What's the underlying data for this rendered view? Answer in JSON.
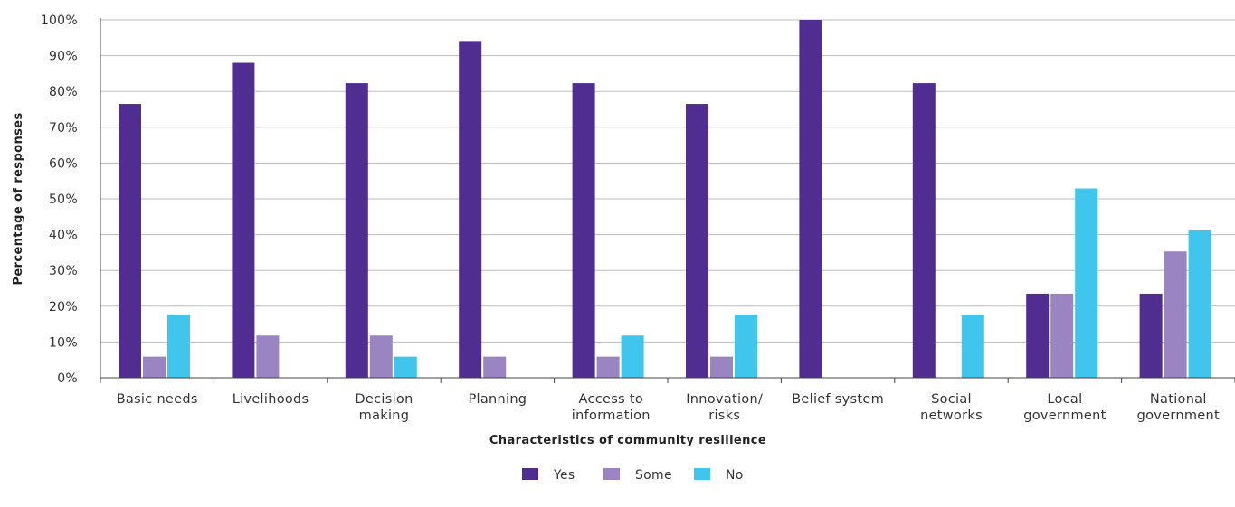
{
  "chart_data": {
    "type": "bar",
    "categories": [
      [
        "Basic needs"
      ],
      [
        "Livelihoods"
      ],
      [
        "Decision",
        "making"
      ],
      [
        "Planning"
      ],
      [
        "Access to",
        "information"
      ],
      [
        "Innovation/",
        "risks"
      ],
      [
        "Belief system"
      ],
      [
        "Social",
        "networks"
      ],
      [
        "Local",
        "government"
      ],
      [
        "National",
        "government"
      ]
    ],
    "series": [
      {
        "name": "Yes",
        "color": "#4f2d91",
        "values": [
          76.5,
          88,
          82.3,
          94.1,
          82.3,
          76.5,
          100,
          82.3,
          23.5,
          23.5
        ]
      },
      {
        "name": "Some",
        "color": "#9a85c2",
        "values": [
          5.9,
          11.8,
          11.8,
          5.9,
          5.9,
          5.9,
          0,
          0,
          23.5,
          35.3
        ]
      },
      {
        "name": "No",
        "color": "#40c6ec",
        "values": [
          17.6,
          0,
          5.9,
          0,
          11.8,
          17.6,
          0,
          17.6,
          52.9,
          41.2
        ]
      }
    ],
    "yticks": [
      "0%",
      "10%",
      "20%",
      "30%",
      "40%",
      "50%",
      "60%",
      "70%",
      "80%",
      "90%",
      "100%"
    ],
    "ylim": [
      0,
      100
    ],
    "xlabel": "Characteristics of community resilience",
    "ylabel": "Percentage of responses",
    "grid": true,
    "legend_position": "bottom-center"
  }
}
